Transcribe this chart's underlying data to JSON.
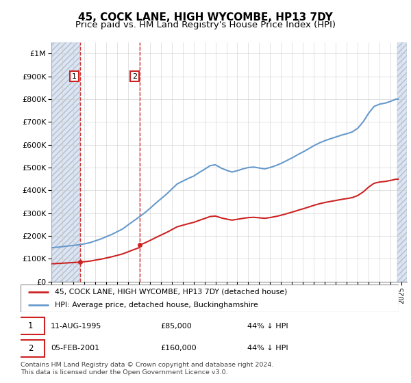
{
  "title": "45, COCK LANE, HIGH WYCOMBE, HP13 7DY",
  "subtitle": "Price paid vs. HM Land Registry's House Price Index (HPI)",
  "ylabel_ticks": [
    "£0",
    "£100K",
    "£200K",
    "£300K",
    "£400K",
    "£500K",
    "£600K",
    "£700K",
    "£800K",
    "£900K",
    "£1M"
  ],
  "ytick_values": [
    0,
    100000,
    200000,
    300000,
    400000,
    500000,
    600000,
    700000,
    800000,
    900000,
    1000000
  ],
  "ylim": [
    0,
    1050000
  ],
  "xlim_start": 1993,
  "xlim_end": 2025.5,
  "hpi_color": "#6699cc",
  "price_color": "#cc2222",
  "annotation_box_color": "#cc2222",
  "grid_color": "#cccccc",
  "hpi_years": [
    1993.0,
    1993.5,
    1994.0,
    1994.5,
    1995.0,
    1995.5,
    1996.0,
    1996.5,
    1997.0,
    1997.5,
    1998.0,
    1998.5,
    1999.0,
    1999.5,
    2000.0,
    2000.5,
    2001.0,
    2001.5,
    2002.0,
    2002.5,
    2003.0,
    2003.5,
    2004.0,
    2004.5,
    2005.0,
    2005.5,
    2006.0,
    2006.5,
    2007.0,
    2007.5,
    2008.0,
    2008.5,
    2009.0,
    2009.5,
    2010.0,
    2010.5,
    2011.0,
    2011.5,
    2012.0,
    2012.5,
    2013.0,
    2013.5,
    2014.0,
    2014.5,
    2015.0,
    2015.5,
    2016.0,
    2016.5,
    2017.0,
    2017.5,
    2018.0,
    2018.5,
    2019.0,
    2019.5,
    2020.0,
    2020.5,
    2021.0,
    2021.5,
    2022.0,
    2022.5,
    2023.0,
    2023.5,
    2024.0,
    2024.5
  ],
  "hpi_vals": [
    148000,
    150000,
    153000,
    156000,
    158000,
    161000,
    165000,
    170000,
    178000,
    186000,
    196000,
    206000,
    218000,
    230000,
    248000,
    265000,
    282000,
    300000,
    320000,
    342000,
    362000,
    382000,
    405000,
    428000,
    440000,
    452000,
    462000,
    478000,
    492000,
    508000,
    512000,
    498000,
    488000,
    480000,
    486000,
    494000,
    500000,
    502000,
    498000,
    494000,
    500000,
    508000,
    518000,
    530000,
    542000,
    556000,
    568000,
    582000,
    596000,
    608000,
    618000,
    626000,
    634000,
    642000,
    648000,
    656000,
    672000,
    700000,
    738000,
    768000,
    778000,
    782000,
    790000,
    800000
  ],
  "purchases": [
    {
      "date": 1995.61,
      "price": 85000,
      "label": "1"
    },
    {
      "date": 2001.09,
      "price": 160000,
      "label": "2"
    }
  ],
  "purchase1_hpi_date": 1995.61,
  "purchase2_hpi_date": 2001.09,
  "legend_line1": "45, COCK LANE, HIGH WYCOMBE, HP13 7DY (detached house)",
  "legend_line2": "HPI: Average price, detached house, Buckinghamshire",
  "table_rows": [
    {
      "num": "1",
      "date": "11-AUG-1995",
      "price": "£85,000",
      "hpi": "44% ↓ HPI"
    },
    {
      "num": "2",
      "date": "05-FEB-2001",
      "price": "£160,000",
      "hpi": "44% ↓ HPI"
    }
  ],
  "footer": "Contains HM Land Registry data © Crown copyright and database right 2024.\nThis data is licensed under the Open Government Licence v3.0.",
  "title_fontsize": 11,
  "subtitle_fontsize": 9.5
}
